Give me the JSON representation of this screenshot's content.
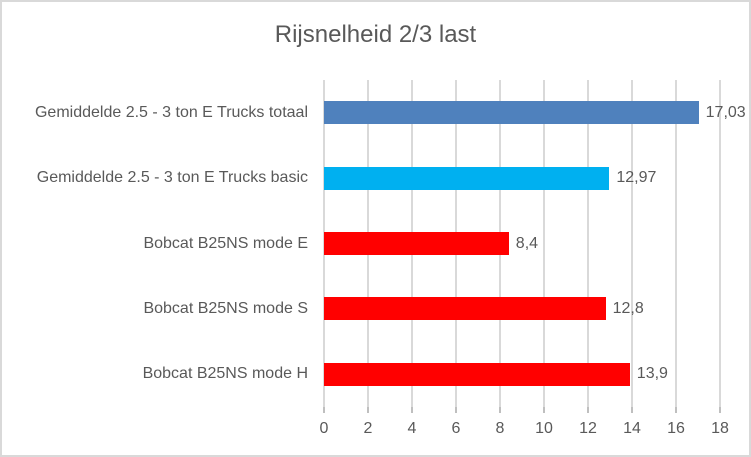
{
  "frame": {
    "background": "#FFFFFF",
    "border_color": "#D9D9D9"
  },
  "chart_data": {
    "type": "bar",
    "orientation": "horizontal",
    "title": "Rijsnelheid 2/3 last",
    "categories": [
      "Gemiddelde 2.5 - 3 ton E Trucks totaal",
      "Gemiddelde 2.5 - 3 ton E Trucks basic",
      "Bobcat B25NS mode E",
      "Bobcat B25NS mode S",
      "Bobcat B25NS mode H"
    ],
    "values": [
      17.03,
      12.97,
      8.4,
      12.8,
      13.9
    ],
    "value_labels": [
      "17,03",
      "12,97",
      "8,4",
      "12,8",
      "13,9"
    ],
    "bar_colors": [
      "#4F81BD",
      "#00B0F0",
      "#FF0000",
      "#FF0000",
      "#FF0000"
    ],
    "xlim": [
      0,
      18
    ],
    "x_ticks": [
      0,
      2,
      4,
      6,
      8,
      10,
      12,
      14,
      16,
      18
    ],
    "x_tick_labels": [
      "0",
      "2",
      "4",
      "6",
      "8",
      "10",
      "12",
      "14",
      "16",
      "18"
    ],
    "grid": true,
    "gridline_color": "#D9D9D9",
    "tick_color": "#BFBFBF",
    "text_color": "#595959",
    "legend": "none",
    "xlabel": "",
    "ylabel": ""
  }
}
